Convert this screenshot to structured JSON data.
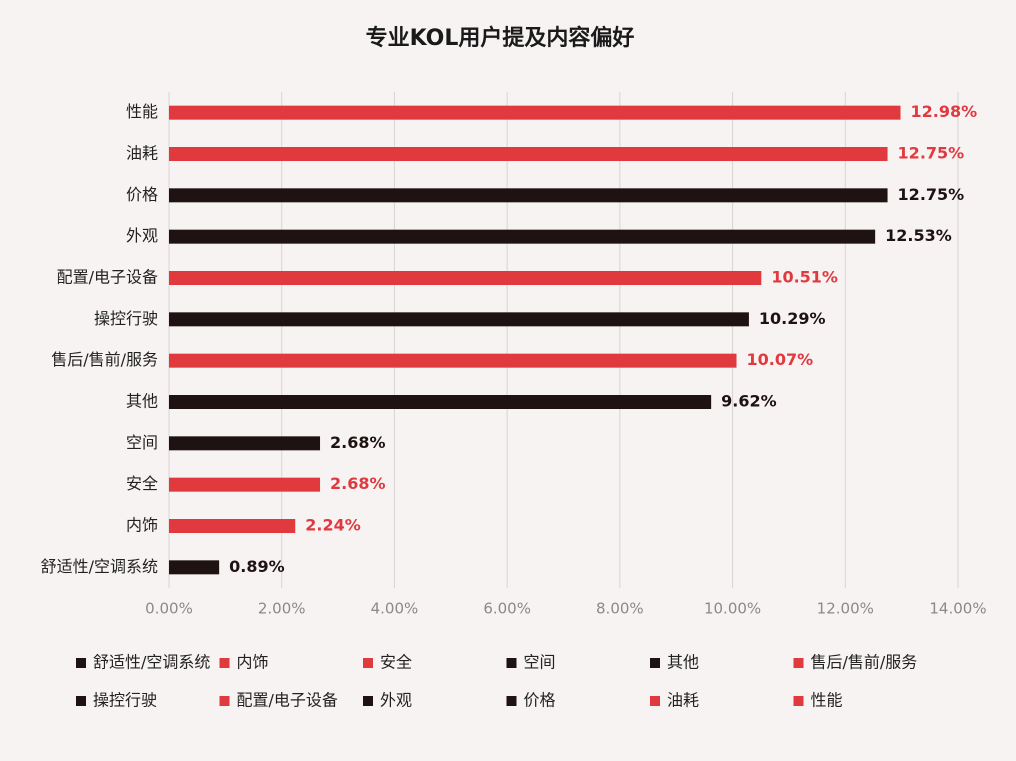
{
  "chart_data": {
    "type": "bar",
    "orientation": "horizontal",
    "title": "专业KOL用户提及内容偏好",
    "categories": [
      "性能",
      "油耗",
      "价格",
      "外观",
      "配置/电子设备",
      "操控行驶",
      "售后/售前/服务",
      "其他",
      "空间",
      "安全",
      "内饰",
      "舒适性/空调系统"
    ],
    "values": [
      12.98,
      12.75,
      12.75,
      12.53,
      10.51,
      10.29,
      10.07,
      9.62,
      2.68,
      2.68,
      2.24,
      0.89
    ],
    "value_labels": [
      "12.98%",
      "12.75%",
      "12.75%",
      "12.53%",
      "10.51%",
      "10.29%",
      "10.07%",
      "9.62%",
      "2.68%",
      "2.68%",
      "2.24%",
      "0.89%"
    ],
    "colors": [
      "#e0393e",
      "#e0393e",
      "#1e1212",
      "#1e1212",
      "#e0393e",
      "#1e1212",
      "#e0393e",
      "#1e1212",
      "#1e1212",
      "#e0393e",
      "#e0393e",
      "#1e1212"
    ],
    "xlim": [
      0,
      14
    ],
    "xticks": [
      {
        "value": 0,
        "label": "0.00%"
      },
      {
        "value": 2,
        "label": "2.00%"
      },
      {
        "value": 4,
        "label": "4.00%"
      },
      {
        "value": 6,
        "label": "6.00%"
      },
      {
        "value": 8,
        "label": "8.00%"
      },
      {
        "value": 10,
        "label": "10.00%"
      },
      {
        "value": 12,
        "label": "12.00%"
      },
      {
        "value": 14,
        "label": "14.00%"
      }
    ],
    "grid": true,
    "legend_position": "bottom"
  }
}
